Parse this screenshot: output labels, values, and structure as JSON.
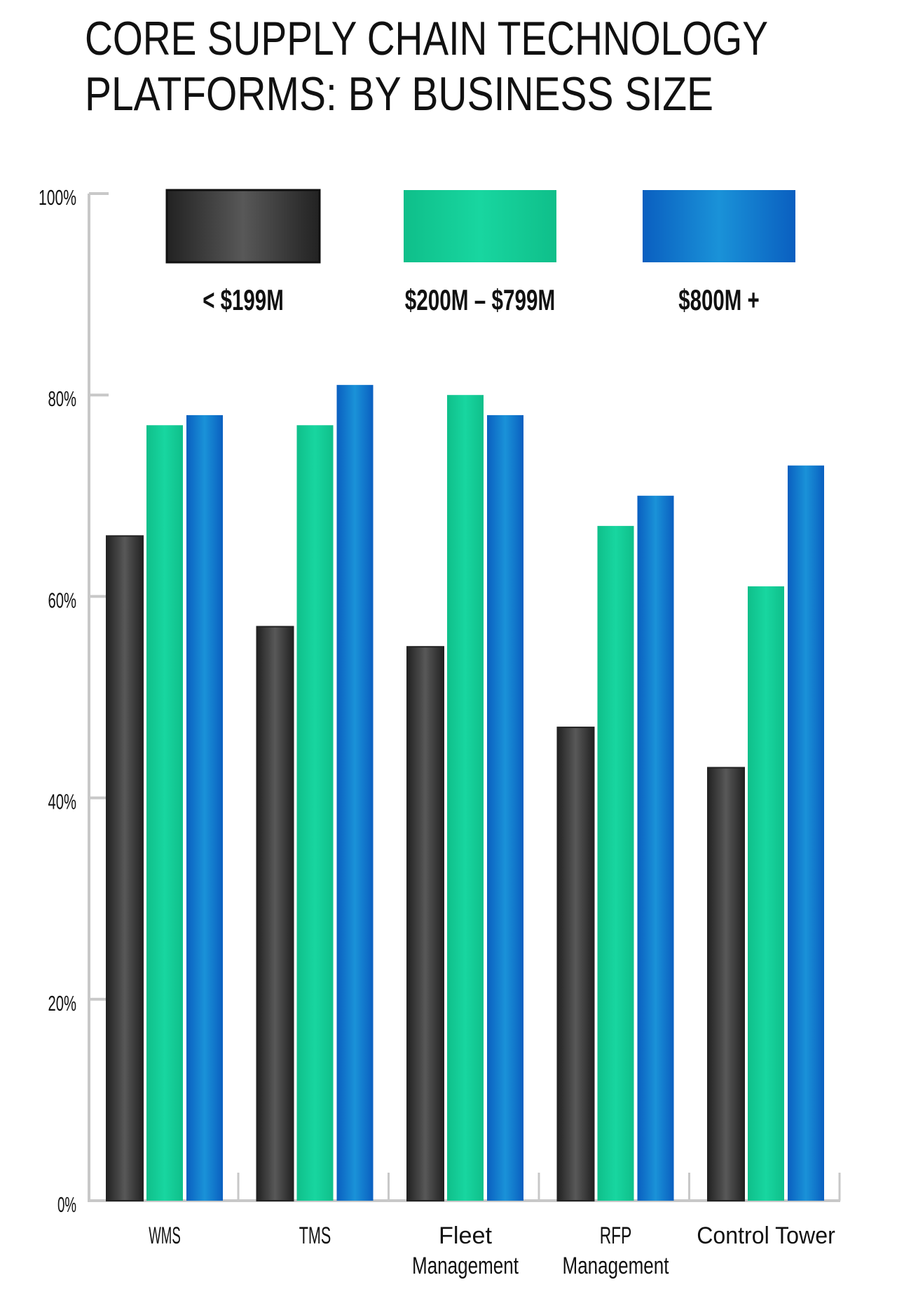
{
  "chart_data": {
    "type": "bar",
    "title": "CORE SUPPLY CHAIN TECHNOLOGY PLATFORMS: BY BUSINESS SIZE",
    "title_lines": [
      "CORE SUPPLY CHAIN TECHNOLOGY",
      "PLATFORMS: BY BUSINESS SIZE"
    ],
    "categories": [
      "WMS",
      "TMS",
      "Fleet Management",
      "RFP Management",
      "Control Tower"
    ],
    "category_lines": [
      [
        "WMS"
      ],
      [
        "TMS"
      ],
      [
        "Fleet",
        "Management"
      ],
      [
        "RFP",
        "Management"
      ],
      [
        "Control Tower"
      ]
    ],
    "series": [
      {
        "name": "< $199M",
        "color": "#4a4a4a",
        "values": [
          66,
          57,
          55,
          47,
          43
        ]
      },
      {
        "name": "$200M – $799M",
        "color": "#14cf9a",
        "values": [
          77,
          77,
          80,
          67,
          61
        ]
      },
      {
        "name": "$800M +",
        "color": "#1a86d4",
        "values": [
          78,
          81,
          78,
          70,
          73
        ]
      }
    ],
    "yticks": [
      "0%",
      "20%",
      "40%",
      "60%",
      "80%",
      "100%"
    ],
    "ylim": [
      0,
      100
    ],
    "ylabel": "",
    "xlabel": "",
    "grid": false,
    "legend_position": "top"
  }
}
